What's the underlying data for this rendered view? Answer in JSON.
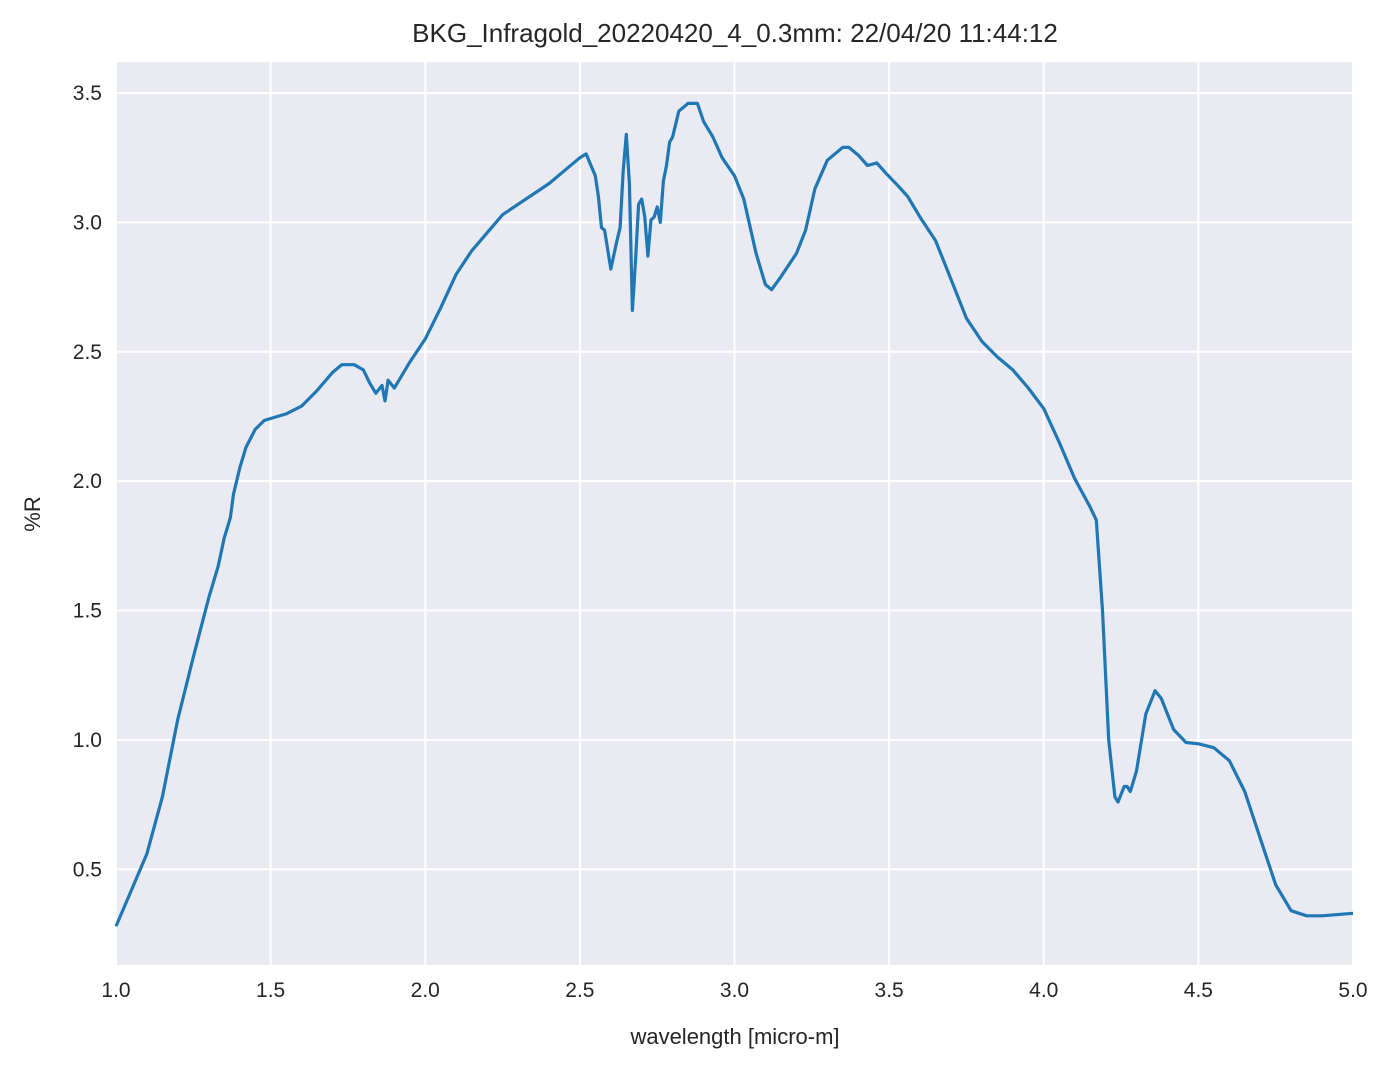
{
  "chart_data": {
    "type": "line",
    "title": "BKG_Infragold_20220420_4_0.3mm:  22/04/20 11:44:12",
    "xlabel": "wavelength [micro-m]",
    "ylabel": "%R",
    "xlim": [
      1.0,
      5.0
    ],
    "ylim": [
      0.13,
      3.62
    ],
    "xticks": [
      "1.0",
      "1.5",
      "2.0",
      "2.5",
      "3.0",
      "3.5",
      "4.0",
      "4.5",
      "5.0"
    ],
    "yticks": [
      "0.5",
      "1.0",
      "1.5",
      "2.0",
      "2.5",
      "3.0",
      "3.5"
    ],
    "grid": true,
    "background_color": "#EAEAF2",
    "line_color": "#1F77B4",
    "series": [
      {
        "x": [
          1.0,
          1.05,
          1.1,
          1.15,
          1.2,
          1.25,
          1.3,
          1.33,
          1.35,
          1.37,
          1.38,
          1.4,
          1.42,
          1.45,
          1.48,
          1.55,
          1.6,
          1.65,
          1.7,
          1.73,
          1.77,
          1.8,
          1.82,
          1.84,
          1.86,
          1.87,
          1.88,
          1.9,
          1.92,
          1.95,
          2.0,
          2.05,
          2.1,
          2.15,
          2.2,
          2.25,
          2.3,
          2.35,
          2.4,
          2.45,
          2.5,
          2.52,
          2.55,
          2.56,
          2.57,
          2.58,
          2.6,
          2.62,
          2.63,
          2.64,
          2.65,
          2.66,
          2.67,
          2.68,
          2.69,
          2.7,
          2.71,
          2.72,
          2.73,
          2.74,
          2.75,
          2.76,
          2.77,
          2.78,
          2.79,
          2.8,
          2.82,
          2.85,
          2.88,
          2.9,
          2.93,
          2.96,
          3.0,
          3.03,
          3.07,
          3.1,
          3.12,
          3.15,
          3.2,
          3.23,
          3.26,
          3.3,
          3.35,
          3.37,
          3.4,
          3.43,
          3.46,
          3.49,
          3.53,
          3.56,
          3.6,
          3.65,
          3.7,
          3.75,
          3.8,
          3.85,
          3.9,
          3.95,
          4.0,
          4.05,
          4.1,
          4.15,
          4.17,
          4.19,
          4.21,
          4.23,
          4.24,
          4.26,
          4.27,
          4.28,
          4.3,
          4.33,
          4.36,
          4.38,
          4.42,
          4.46,
          4.5,
          4.55,
          4.6,
          4.65,
          4.7,
          4.75,
          4.8,
          4.85,
          4.9,
          5.0
        ],
        "y": [
          0.28,
          0.42,
          0.56,
          0.78,
          1.08,
          1.32,
          1.55,
          1.67,
          1.78,
          1.86,
          1.95,
          2.05,
          2.13,
          2.2,
          2.235,
          2.26,
          2.29,
          2.35,
          2.42,
          2.45,
          2.45,
          2.43,
          2.38,
          2.34,
          2.37,
          2.31,
          2.39,
          2.36,
          2.4,
          2.46,
          2.55,
          2.67,
          2.8,
          2.89,
          2.96,
          3.03,
          3.07,
          3.11,
          3.15,
          3.2,
          3.25,
          3.265,
          3.18,
          3.1,
          2.98,
          2.97,
          2.82,
          2.93,
          2.98,
          3.2,
          3.34,
          3.15,
          2.66,
          2.85,
          3.07,
          3.09,
          3.02,
          2.87,
          3.01,
          3.02,
          3.06,
          3.0,
          3.16,
          3.22,
          3.31,
          3.33,
          3.43,
          3.46,
          3.46,
          3.39,
          3.33,
          3.25,
          3.18,
          3.09,
          2.88,
          2.76,
          2.74,
          2.79,
          2.88,
          2.97,
          3.13,
          3.24,
          3.29,
          3.29,
          3.26,
          3.22,
          3.23,
          3.19,
          3.14,
          3.1,
          3.02,
          2.93,
          2.78,
          2.63,
          2.54,
          2.48,
          2.43,
          2.36,
          2.28,
          2.15,
          2.01,
          1.9,
          1.85,
          1.5,
          1.0,
          0.78,
          0.76,
          0.82,
          0.82,
          0.8,
          0.88,
          1.1,
          1.19,
          1.16,
          1.04,
          0.99,
          0.985,
          0.97,
          0.92,
          0.8,
          0.62,
          0.44,
          0.34,
          0.32,
          0.32,
          0.33
        ]
      }
    ]
  }
}
